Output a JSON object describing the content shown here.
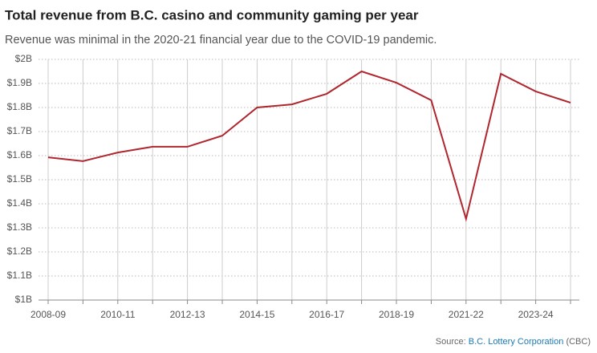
{
  "chart_data": {
    "type": "line",
    "title": "Total revenue from B.C. casino and community gaming per year",
    "subtitle": "Revenue was minimal in the 2020-21 financial year due to the COVID-19 pandemic.",
    "categories": [
      "2008-09",
      null,
      "2010-11",
      null,
      "2012-13",
      null,
      "2014-15",
      null,
      "2016-17",
      null,
      "2018-19",
      null,
      "2021-22",
      null,
      "2023-24",
      null
    ],
    "series": [
      {
        "name": "Revenue",
        "color": "#b0262e",
        "values": [
          1.593,
          1.577,
          1.613,
          1.637,
          1.637,
          1.683,
          1.8,
          1.813,
          1.857,
          1.95,
          1.903,
          1.83,
          1.337,
          1.94,
          1.867,
          1.82
        ]
      }
    ],
    "ylim": [
      1,
      2
    ],
    "yticks": [
      {
        "value": 1,
        "label": "$1B"
      },
      {
        "value": 1.1,
        "label": "$1.1B"
      },
      {
        "value": 1.2,
        "label": "$1.2B"
      },
      {
        "value": 1.3,
        "label": "$1.3B"
      },
      {
        "value": 1.4,
        "label": "$1.4B"
      },
      {
        "value": 1.5,
        "label": "$1.5B"
      },
      {
        "value": 1.6,
        "label": "$1.6B"
      },
      {
        "value": 1.7,
        "label": "$1.7B"
      },
      {
        "value": 1.8,
        "label": "$1.8B"
      },
      {
        "value": 1.9,
        "label": "$1.9B"
      },
      {
        "value": 2,
        "label": "$2B"
      }
    ],
    "grid": true,
    "source": {
      "prefix": "Source:",
      "link": "B.C. Lottery Corporation",
      "suffix": "(CBC)"
    }
  }
}
